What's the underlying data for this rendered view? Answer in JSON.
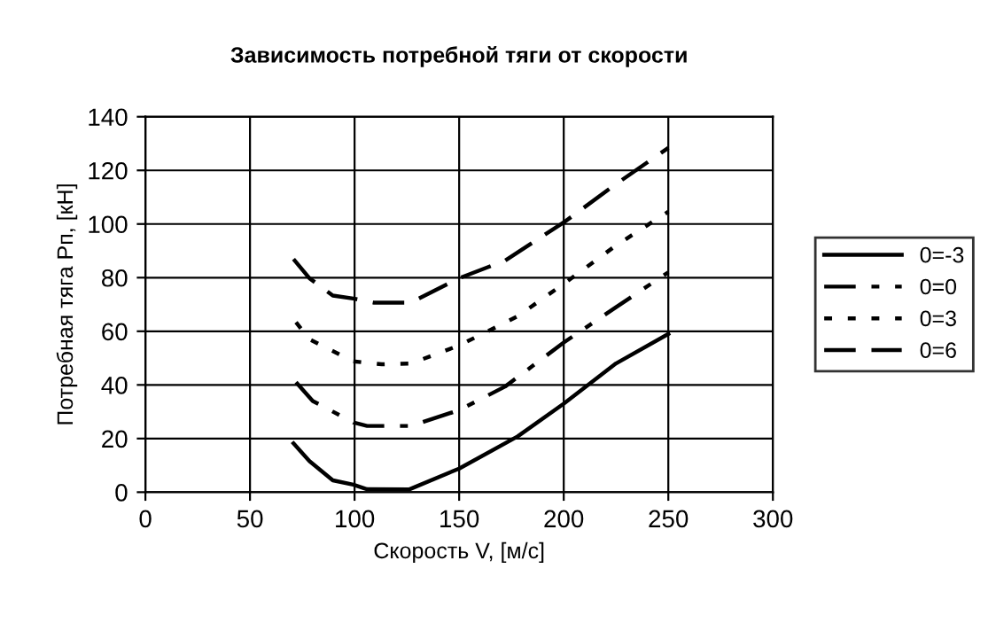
{
  "chart_data": {
    "type": "line",
    "title": "Зависимость потребной тяги от скорости",
    "xlabel": "Скорость V, [м/с]",
    "ylabel": "Потребная тяга Pп, [кН]",
    "xlim": [
      0,
      300
    ],
    "xticks": [
      0,
      50,
      100,
      150,
      200,
      250,
      300
    ],
    "ylim": [
      0,
      140
    ],
    "yticks": [
      0,
      20,
      40,
      60,
      80,
      100,
      120,
      140
    ],
    "grid": true,
    "legend": "right",
    "marker": "none",
    "series": [
      {
        "name": "0=-3",
        "color": "#000000",
        "line_style": "solid",
        "x": [
          70.8,
          78.4,
          89.6,
          99.4,
          106,
          126,
          150,
          178,
          200,
          225,
          250
        ],
        "values": [
          18.2,
          11.6,
          4.4,
          2.8,
          1.1,
          1,
          8.8,
          20.8,
          33,
          48,
          59
        ]
      },
      {
        "name": "0=0",
        "color": "#000000",
        "line_style": "dashdot",
        "x": [
          72,
          80,
          99.4,
          106,
          127,
          150,
          172,
          200,
          225,
          250
        ],
        "values": [
          41,
          34,
          26,
          24.7,
          24.7,
          30.6,
          39.4,
          55.8,
          69,
          82
        ]
      },
      {
        "name": "0=3",
        "color": "#000000",
        "line_style": "dotted",
        "x": [
          72,
          78.4,
          99.4,
          113,
          127,
          150,
          178,
          200,
          225,
          250
        ],
        "values": [
          63.4,
          57,
          48.8,
          47.7,
          48,
          54.7,
          65.6,
          77.7,
          92,
          104.6
        ]
      },
      {
        "name": "0=6",
        "color": "#000000",
        "line_style": "dashed",
        "x": [
          70.8,
          78.4,
          89.6,
          99.4,
          109,
          127,
          150,
          172,
          200,
          225,
          250
        ],
        "values": [
          86.9,
          79.8,
          73.3,
          72.2,
          70.7,
          70.7,
          79.8,
          86.4,
          100.6,
          114.9,
          128.4
        ]
      }
    ]
  }
}
